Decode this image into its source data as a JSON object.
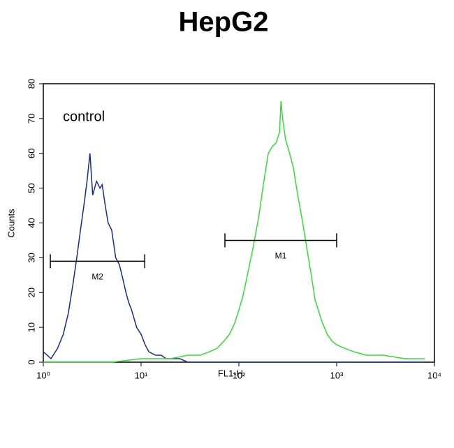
{
  "chart_data": {
    "type": "line",
    "title": "HepG2",
    "annotation": "control",
    "x_label": "FL1-H",
    "y_label": "Counts",
    "x_scale": "log",
    "xlim": [
      1,
      10000
    ],
    "ylim": [
      0,
      80
    ],
    "xticks": [
      {
        "value": 1,
        "label": "10⁰"
      },
      {
        "value": 10,
        "label": "10¹"
      },
      {
        "value": 100,
        "label": "10²"
      },
      {
        "value": 1000,
        "label": "10³"
      },
      {
        "value": 10000,
        "label": "10⁴"
      }
    ],
    "yticks": [
      0,
      10,
      20,
      30,
      40,
      50,
      60,
      70,
      80
    ],
    "series": [
      {
        "color": "#1a2a8c",
        "x": [
          1,
          1.2,
          1.4,
          1.6,
          1.8,
          2,
          2.2,
          2.4,
          2.6,
          2.8,
          3,
          3.2,
          3.5,
          3.8,
          4,
          4.3,
          4.6,
          5,
          5.5,
          6,
          6.5,
          7,
          7.5,
          8,
          9,
          10,
          11,
          12,
          14,
          16,
          18,
          20,
          25,
          30,
          40,
          60,
          100,
          200,
          500,
          1000,
          3000,
          8000
        ],
        "values": [
          3,
          1,
          4,
          8,
          14,
          22,
          30,
          38,
          45,
          52,
          60,
          48,
          52,
          50,
          51,
          45,
          40,
          38,
          30,
          28,
          24,
          20,
          17,
          15,
          10,
          8,
          5,
          3,
          2,
          2,
          1,
          1,
          1,
          0,
          0,
          0,
          0,
          0,
          0,
          0,
          0,
          0
        ]
      },
      {
        "color": "#33dd33",
        "x": [
          1,
          5,
          10,
          20,
          30,
          40,
          50,
          60,
          70,
          80,
          90,
          100,
          110,
          120,
          140,
          160,
          180,
          200,
          220,
          240,
          260,
          270,
          280,
          300,
          330,
          360,
          400,
          450,
          500,
          550,
          600,
          700,
          800,
          900,
          1000,
          1200,
          1500,
          2000,
          3000,
          5000,
          8000
        ],
        "values": [
          0,
          0,
          1,
          1,
          2,
          2,
          3,
          4,
          6,
          8,
          11,
          15,
          19,
          24,
          33,
          42,
          52,
          60,
          62,
          63,
          66,
          75,
          70,
          64,
          60,
          56,
          48,
          40,
          32,
          25,
          18,
          12,
          8,
          6,
          5,
          4,
          3,
          2,
          2,
          1,
          1
        ]
      }
    ],
    "markers": [
      {
        "label": "M1",
        "x": [
          72,
          1000
        ],
        "y": 35
      },
      {
        "label": "M2",
        "x": [
          1.18,
          10.9
        ],
        "y": 29
      }
    ]
  }
}
